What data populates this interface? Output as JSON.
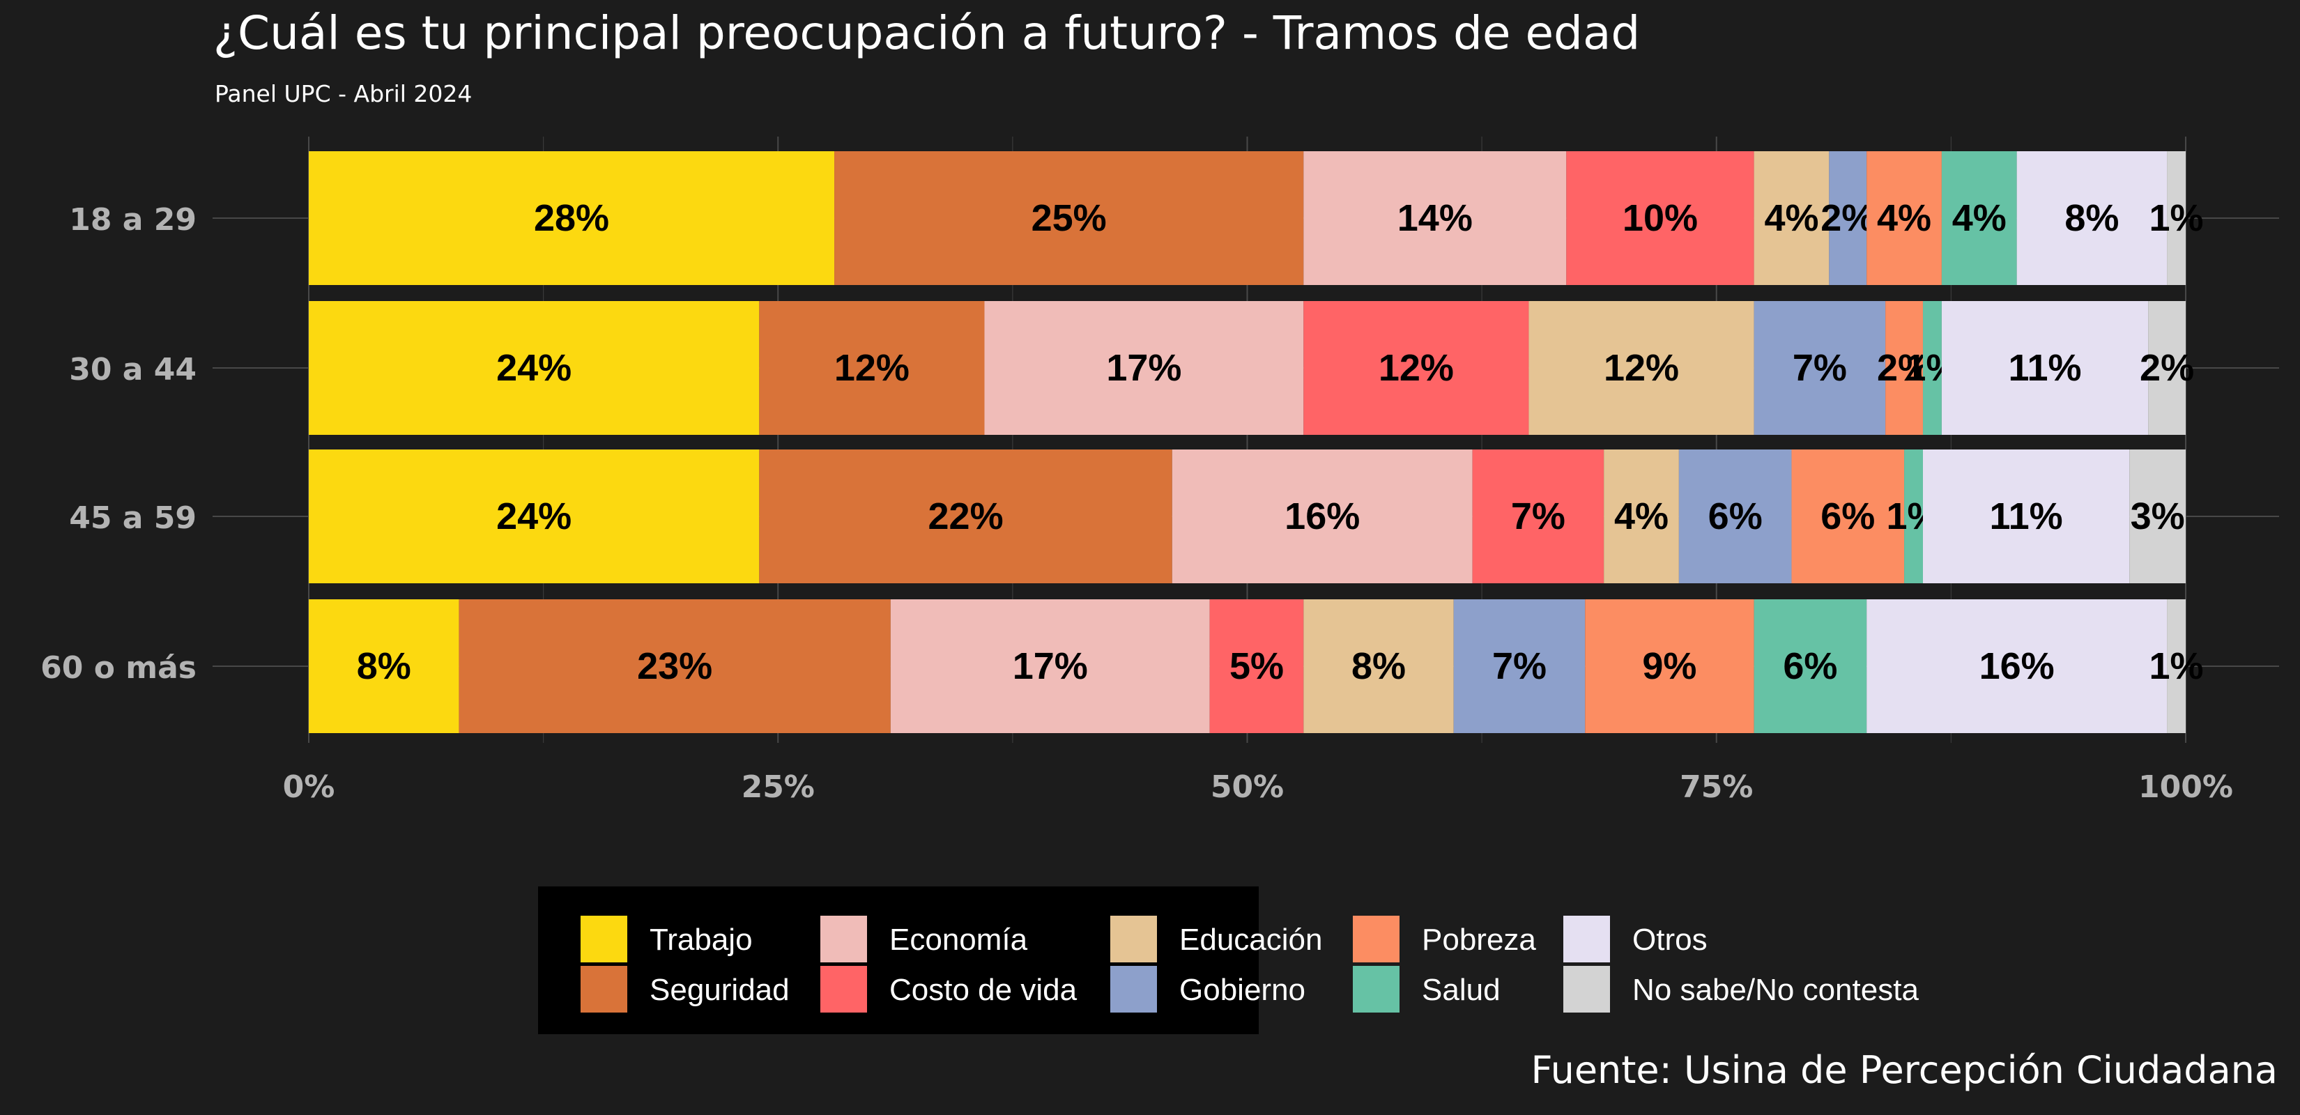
{
  "chart_data": {
    "type": "bar",
    "orientation": "horizontal",
    "stacked": true,
    "title": "¿Cuál es tu principal preocupación a futuro? - Tramos de edad",
    "subtitle": "Panel UPC - Abril 2024",
    "caption": "Fuente: Usina de Percepción Ciudadana",
    "categories": [
      "18 a 29",
      "30 a 44",
      "45 a 59",
      "60 o más"
    ],
    "xlim": [
      0,
      100
    ],
    "x_ticks": [
      0,
      25,
      50,
      75,
      100
    ],
    "x_tick_labels": [
      "0%",
      "25%",
      "50%",
      "75%",
      "100%"
    ],
    "grid": true,
    "legend_position": "bottom",
    "series": [
      {
        "name": "Trabajo",
        "color": "#FCD910",
        "values": [
          28,
          24,
          24,
          8
        ],
        "labels": [
          "28%",
          "24%",
          "24%",
          "8%"
        ]
      },
      {
        "name": "Seguridad",
        "color": "#D97339",
        "values": [
          25,
          12,
          22,
          23
        ],
        "labels": [
          "25%",
          "12%",
          "22%",
          "23%"
        ]
      },
      {
        "name": "Economía",
        "color": "#F0BCB8",
        "values": [
          14,
          17,
          16,
          17
        ],
        "labels": [
          "14%",
          "17%",
          "16%",
          "17%"
        ]
      },
      {
        "name": "Costo de vida",
        "color": "#FF6466",
        "values": [
          10,
          12,
          7,
          5
        ],
        "labels": [
          "10%",
          "12%",
          "7%",
          "5%"
        ]
      },
      {
        "name": "Educación",
        "color": "#E5C494",
        "values": [
          4,
          12,
          4,
          8
        ],
        "labels": [
          "4%",
          "12%",
          "4%",
          "8%"
        ]
      },
      {
        "name": "Gobierno",
        "color": "#8DA0CB",
        "values": [
          2,
          7,
          6,
          7
        ],
        "labels": [
          "2%",
          "7%",
          "6%",
          "7%"
        ]
      },
      {
        "name": "Pobreza",
        "color": "#FC8D62",
        "values": [
          4,
          2,
          6,
          9
        ],
        "labels": [
          "4%",
          "2%",
          "6%",
          "9%"
        ]
      },
      {
        "name": "Salud",
        "color": "#66C2A5",
        "values": [
          4,
          1,
          1,
          6
        ],
        "labels": [
          "4%",
          "1%",
          "1%",
          "6%"
        ]
      },
      {
        "name": "Otros",
        "color": "#E5E0F2",
        "values": [
          8,
          11,
          11,
          16
        ],
        "labels": [
          "8%",
          "11%",
          "11%",
          "16%"
        ]
      },
      {
        "name": "No sabe/No contesta",
        "color": "#D3D3D3",
        "values": [
          1,
          2,
          3,
          1
        ],
        "labels": [
          "1%",
          "2%",
          "3%",
          "1%"
        ]
      }
    ]
  }
}
